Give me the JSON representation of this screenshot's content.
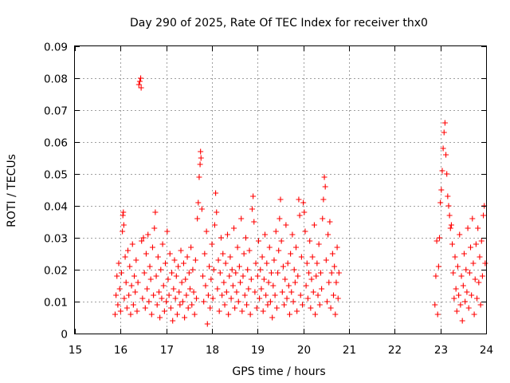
{
  "chart_data": {
    "type": "scatter",
    "title": "Day 290 of 2025, Rate Of TEC Index for receiver thx0",
    "xlabel": "GPS time / hours",
    "ylabel": "ROTI / TECUs",
    "xlim": [
      15,
      24
    ],
    "ylim": [
      0,
      0.09
    ],
    "xticks": [
      15,
      16,
      17,
      18,
      19,
      20,
      21,
      22,
      23,
      24
    ],
    "xtick_labels": [
      "15",
      "16",
      "17",
      "18",
      "19",
      "20",
      "21",
      "22",
      "23",
      "24"
    ],
    "yticks": [
      0,
      0.01,
      0.02,
      0.03,
      0.04,
      0.05,
      0.06,
      0.07,
      0.08,
      0.09
    ],
    "ytick_labels": [
      "0",
      "0.01",
      "0.02",
      "0.03",
      "0.04",
      "0.05",
      "0.06",
      "0.07",
      "0.08",
      "0.09"
    ],
    "grid": true,
    "marker": "+",
    "color": "#ff0000",
    "series": [
      {
        "points": [
          [
            15.88,
            0.006
          ],
          [
            15.9,
            0.012
          ],
          [
            15.92,
            0.018
          ],
          [
            15.94,
            0.009
          ],
          [
            15.96,
            0.022
          ],
          [
            15.98,
            0.014
          ],
          [
            16.0,
            0.007
          ],
          [
            16.02,
            0.019
          ],
          [
            16.04,
            0.032
          ],
          [
            16.05,
            0.037
          ],
          [
            16.06,
            0.038
          ],
          [
            16.07,
            0.034
          ],
          [
            16.08,
            0.011
          ],
          [
            16.1,
            0.024
          ],
          [
            16.12,
            0.016
          ],
          [
            16.14,
            0.008
          ],
          [
            16.16,
            0.026
          ],
          [
            16.18,
            0.012
          ],
          [
            16.2,
            0.021
          ],
          [
            16.22,
            0.006
          ],
          [
            16.24,
            0.015
          ],
          [
            16.26,
            0.028
          ],
          [
            16.28,
            0.009
          ],
          [
            16.3,
            0.018
          ],
          [
            16.32,
            0.013
          ],
          [
            16.34,
            0.023
          ],
          [
            16.36,
            0.007
          ],
          [
            16.38,
            0.016
          ],
          [
            16.4,
            0.078
          ],
          [
            16.42,
            0.079
          ],
          [
            16.44,
            0.08
          ],
          [
            16.45,
            0.077
          ],
          [
            16.46,
            0.029
          ],
          [
            16.48,
            0.011
          ],
          [
            16.5,
            0.03
          ],
          [
            16.52,
            0.019
          ],
          [
            16.54,
            0.008
          ],
          [
            16.56,
            0.025
          ],
          [
            16.58,
            0.014
          ],
          [
            16.6,
            0.031
          ],
          [
            16.62,
            0.01
          ],
          [
            16.64,
            0.021
          ],
          [
            16.66,
            0.017
          ],
          [
            16.68,
            0.006
          ],
          [
            16.7,
            0.027
          ],
          [
            16.72,
            0.012
          ],
          [
            16.74,
            0.033
          ],
          [
            16.76,
            0.038
          ],
          [
            16.78,
            0.018
          ],
          [
            16.8,
            0.009
          ],
          [
            16.82,
            0.024
          ],
          [
            16.84,
            0.013
          ],
          [
            16.86,
            0.005
          ],
          [
            16.88,
            0.02
          ],
          [
            16.9,
            0.011
          ],
          [
            16.92,
            0.028
          ],
          [
            16.94,
            0.015
          ],
          [
            16.96,
            0.007
          ],
          [
            16.98,
            0.022
          ],
          [
            17.0,
            0.01
          ],
          [
            17.02,
            0.032
          ],
          [
            17.04,
            0.017
          ],
          [
            17.06,
            0.012
          ],
          [
            17.08,
            0.025
          ],
          [
            17.1,
            0.008
          ],
          [
            17.12,
            0.019
          ],
          [
            17.14,
            0.004
          ],
          [
            17.16,
            0.014
          ],
          [
            17.18,
            0.023
          ],
          [
            17.2,
            0.011
          ],
          [
            17.22,
            0.018
          ],
          [
            17.24,
            0.006
          ],
          [
            17.26,
            0.021
          ],
          [
            17.28,
            0.013
          ],
          [
            17.3,
            0.009
          ],
          [
            17.32,
            0.026
          ],
          [
            17.34,
            0.016
          ],
          [
            17.36,
            0.01
          ],
          [
            17.38,
            0.022
          ],
          [
            17.4,
            0.005
          ],
          [
            17.42,
            0.017
          ],
          [
            17.44,
            0.012
          ],
          [
            17.46,
            0.024
          ],
          [
            17.48,
            0.008
          ],
          [
            17.5,
            0.019
          ],
          [
            17.52,
            0.014
          ],
          [
            17.54,
            0.027
          ],
          [
            17.56,
            0.009
          ],
          [
            17.58,
            0.02
          ],
          [
            17.6,
            0.013
          ],
          [
            17.62,
            0.006
          ],
          [
            17.64,
            0.023
          ],
          [
            17.66,
            0.011
          ],
          [
            17.68,
            0.036
          ],
          [
            17.7,
            0.041
          ],
          [
            17.72,
            0.049
          ],
          [
            17.74,
            0.053
          ],
          [
            17.75,
            0.057
          ],
          [
            17.76,
            0.055
          ],
          [
            17.78,
            0.039
          ],
          [
            17.8,
            0.018
          ],
          [
            17.82,
            0.01
          ],
          [
            17.84,
            0.025
          ],
          [
            17.86,
            0.015
          ],
          [
            17.88,
            0.032
          ],
          [
            17.9,
            0.003
          ],
          [
            17.92,
            0.012
          ],
          [
            17.94,
            0.021
          ],
          [
            17.96,
            0.008
          ],
          [
            17.98,
            0.017
          ],
          [
            18.0,
            0.028
          ],
          [
            18.02,
            0.011
          ],
          [
            18.04,
            0.02
          ],
          [
            18.06,
            0.034
          ],
          [
            18.08,
            0.044
          ],
          [
            18.1,
            0.038
          ],
          [
            18.12,
            0.014
          ],
          [
            18.14,
            0.023
          ],
          [
            18.16,
            0.007
          ],
          [
            18.18,
            0.019
          ],
          [
            18.2,
            0.03
          ],
          [
            18.22,
            0.012
          ],
          [
            18.24,
            0.025
          ],
          [
            18.26,
            0.016
          ],
          [
            18.28,
            0.009
          ],
          [
            18.3,
            0.022
          ],
          [
            18.32,
            0.013
          ],
          [
            18.34,
            0.031
          ],
          [
            18.36,
            0.006
          ],
          [
            18.38,
            0.018
          ],
          [
            18.4,
            0.024
          ],
          [
            18.42,
            0.011
          ],
          [
            18.44,
            0.02
          ],
          [
            18.46,
            0.015
          ],
          [
            18.48,
            0.033
          ],
          [
            18.5,
            0.008
          ],
          [
            18.52,
            0.019
          ],
          [
            18.54,
            0.013
          ],
          [
            18.56,
            0.027
          ],
          [
            18.58,
            0.01
          ],
          [
            18.6,
            0.021
          ],
          [
            18.62,
            0.016
          ],
          [
            18.64,
            0.036
          ],
          [
            18.66,
            0.007
          ],
          [
            18.68,
            0.018
          ],
          [
            18.7,
            0.025
          ],
          [
            18.72,
            0.012
          ],
          [
            18.74,
            0.03
          ],
          [
            18.76,
            0.009
          ],
          [
            18.78,
            0.02
          ],
          [
            18.8,
            0.014
          ],
          [
            18.82,
            0.026
          ],
          [
            18.84,
            0.006
          ],
          [
            18.86,
            0.017
          ],
          [
            18.88,
            0.039
          ],
          [
            18.9,
            0.043
          ],
          [
            18.92,
            0.035
          ],
          [
            18.94,
            0.013
          ],
          [
            18.96,
            0.022
          ],
          [
            18.98,
            0.008
          ],
          [
            19.0,
            0.018
          ],
          [
            19.02,
            0.029
          ],
          [
            19.04,
            0.011
          ],
          [
            19.06,
            0.02
          ],
          [
            19.08,
            0.014
          ],
          [
            19.1,
            0.024
          ],
          [
            19.12,
            0.007
          ],
          [
            19.14,
            0.017
          ],
          [
            19.16,
            0.031
          ],
          [
            19.18,
            0.012
          ],
          [
            19.2,
            0.022
          ],
          [
            19.22,
            0.009
          ],
          [
            19.24,
            0.016
          ],
          [
            19.26,
            0.027
          ],
          [
            19.28,
            0.01
          ],
          [
            19.3,
            0.019
          ],
          [
            19.32,
            0.005
          ],
          [
            19.34,
            0.015
          ],
          [
            19.36,
            0.023
          ],
          [
            19.38,
            0.012
          ],
          [
            19.4,
            0.032
          ],
          [
            19.42,
            0.008
          ],
          [
            19.44,
            0.019
          ],
          [
            19.46,
            0.026
          ],
          [
            19.48,
            0.036
          ],
          [
            19.5,
            0.042
          ],
          [
            19.52,
            0.029
          ],
          [
            19.54,
            0.013
          ],
          [
            19.56,
            0.021
          ],
          [
            19.58,
            0.009
          ],
          [
            19.6,
            0.017
          ],
          [
            19.62,
            0.034
          ],
          [
            19.64,
            0.011
          ],
          [
            19.66,
            0.022
          ],
          [
            19.68,
            0.015
          ],
          [
            19.7,
            0.006
          ],
          [
            19.72,
            0.025
          ],
          [
            19.74,
            0.013
          ],
          [
            19.76,
            0.031
          ],
          [
            19.78,
            0.01
          ],
          [
            19.8,
            0.02
          ],
          [
            19.82,
            0.016
          ],
          [
            19.84,
            0.027
          ],
          [
            19.86,
            0.007
          ],
          [
            19.88,
            0.018
          ],
          [
            19.9,
            0.042
          ],
          [
            19.92,
            0.037
          ],
          [
            19.94,
            0.012
          ],
          [
            19.96,
            0.024
          ],
          [
            19.98,
            0.009
          ],
          [
            20.0,
            0.041
          ],
          [
            20.02,
            0.038
          ],
          [
            20.04,
            0.032
          ],
          [
            20.06,
            0.015
          ],
          [
            20.08,
            0.022
          ],
          [
            20.1,
            0.011
          ],
          [
            20.12,
            0.019
          ],
          [
            20.14,
            0.029
          ],
          [
            20.16,
            0.008
          ],
          [
            20.18,
            0.017
          ],
          [
            20.2,
            0.024
          ],
          [
            20.22,
            0.013
          ],
          [
            20.24,
            0.034
          ],
          [
            20.26,
            0.006
          ],
          [
            20.28,
            0.018
          ],
          [
            20.3,
            0.022
          ],
          [
            20.32,
            0.012
          ],
          [
            20.34,
            0.028
          ],
          [
            20.36,
            0.009
          ],
          [
            20.38,
            0.019
          ],
          [
            20.4,
            0.014
          ],
          [
            20.42,
            0.036
          ],
          [
            20.44,
            0.042
          ],
          [
            20.46,
            0.049
          ],
          [
            20.48,
            0.046
          ],
          [
            20.5,
            0.023
          ],
          [
            20.52,
            0.01
          ],
          [
            20.54,
            0.031
          ],
          [
            20.56,
            0.016
          ],
          [
            20.58,
            0.035
          ],
          [
            20.6,
            0.008
          ],
          [
            20.62,
            0.019
          ],
          [
            20.64,
            0.025
          ],
          [
            20.66,
            0.012
          ],
          [
            20.68,
            0.021
          ],
          [
            20.7,
            0.006
          ],
          [
            20.72,
            0.016
          ],
          [
            20.74,
            0.027
          ],
          [
            20.76,
            0.011
          ],
          [
            20.78,
            0.019
          ],
          [
            22.88,
            0.009
          ],
          [
            22.9,
            0.018
          ],
          [
            22.92,
            0.029
          ],
          [
            22.94,
            0.006
          ],
          [
            22.96,
            0.021
          ],
          [
            22.98,
            0.03
          ],
          [
            23.0,
            0.041
          ],
          [
            23.02,
            0.045
          ],
          [
            23.04,
            0.051
          ],
          [
            23.06,
            0.058
          ],
          [
            23.08,
            0.063
          ],
          [
            23.1,
            0.066
          ],
          [
            23.12,
            0.056
          ],
          [
            23.14,
            0.05
          ],
          [
            23.16,
            0.043
          ],
          [
            23.18,
            0.04
          ],
          [
            23.2,
            0.037
          ],
          [
            23.22,
            0.033
          ],
          [
            23.24,
            0.034
          ],
          [
            23.26,
            0.028
          ],
          [
            23.28,
            0.019
          ],
          [
            23.3,
            0.011
          ],
          [
            23.32,
            0.024
          ],
          [
            23.34,
            0.014
          ],
          [
            23.36,
            0.007
          ],
          [
            23.38,
            0.021
          ],
          [
            23.4,
            0.012
          ],
          [
            23.42,
            0.031
          ],
          [
            23.44,
            0.009
          ],
          [
            23.46,
            0.018
          ],
          [
            23.48,
            0.004
          ],
          [
            23.5,
            0.015
          ],
          [
            23.52,
            0.025
          ],
          [
            23.54,
            0.01
          ],
          [
            23.56,
            0.02
          ],
          [
            23.58,
            0.013
          ],
          [
            23.6,
            0.033
          ],
          [
            23.62,
            0.008
          ],
          [
            23.64,
            0.019
          ],
          [
            23.66,
            0.027
          ],
          [
            23.68,
            0.012
          ],
          [
            23.7,
            0.036
          ],
          [
            23.72,
            0.022
          ],
          [
            23.74,
            0.006
          ],
          [
            23.76,
            0.017
          ],
          [
            23.78,
            0.028
          ],
          [
            23.8,
            0.011
          ],
          [
            23.82,
            0.033
          ],
          [
            23.84,
            0.016
          ],
          [
            23.86,
            0.024
          ],
          [
            23.88,
            0.009
          ],
          [
            23.9,
            0.029
          ],
          [
            23.92,
            0.018
          ],
          [
            23.94,
            0.037
          ],
          [
            23.96,
            0.04
          ],
          [
            23.98,
            0.022
          ]
        ]
      }
    ]
  }
}
